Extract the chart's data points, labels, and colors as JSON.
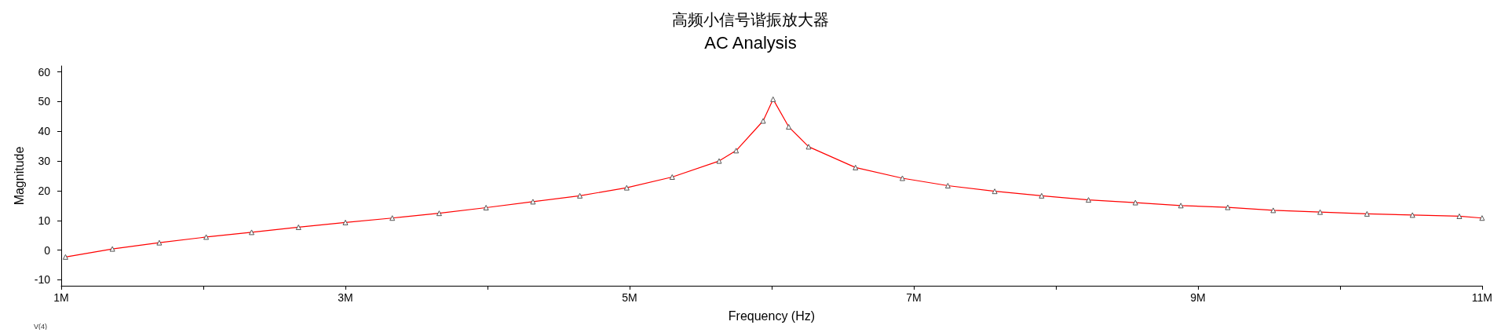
{
  "chart_data": {
    "type": "line",
    "title": "高频小信号谐振放大器",
    "subtitle": "AC Analysis",
    "xlabel": "Frequency (Hz)",
    "ylabel": "Magnitude",
    "annotations": [
      "V(4)"
    ],
    "xlim": [
      1000000,
      11000000
    ],
    "xticks": [
      {
        "value": 1000000,
        "label": "1M"
      },
      {
        "value": 2000000,
        "label": null
      },
      {
        "value": 3000000,
        "label": "3M"
      },
      {
        "value": 4000000,
        "label": null
      },
      {
        "value": 5000000,
        "label": "5M"
      },
      {
        "value": 6000000,
        "label": null
      },
      {
        "value": 7000000,
        "label": "7M"
      },
      {
        "value": 8000000,
        "label": null
      },
      {
        "value": 9000000,
        "label": "9M"
      },
      {
        "value": 10000000,
        "label": null
      },
      {
        "value": 11000000,
        "label": "11M"
      }
    ],
    "ylim": [
      -12,
      62
    ],
    "yticks": [
      -10,
      0,
      10,
      20,
      30,
      40,
      50,
      60
    ],
    "grid": false,
    "marker": "triangle",
    "line_style": "solid",
    "series": [
      {
        "color": "#ff0000",
        "x": [
          1030000,
          1360000,
          1690000,
          2020000,
          2340000,
          2670000,
          3000000,
          3330000,
          3660000,
          3990000,
          4320000,
          4650000,
          4980000,
          5300000,
          5630000,
          5750000,
          5940000,
          6010000,
          6120000,
          6260000,
          6590000,
          6920000,
          7240000,
          7570000,
          7900000,
          8230000,
          8560000,
          8880000,
          9210000,
          9530000,
          9860000,
          10190000,
          10510000,
          10840000,
          11000000
        ],
        "values": [
          -2.3,
          0.4,
          2.5,
          4.4,
          6.0,
          7.7,
          9.3,
          10.8,
          12.4,
          14.3,
          16.3,
          18.3,
          21.0,
          24.6,
          30.0,
          33.5,
          43.5,
          50.8,
          41.5,
          34.8,
          27.8,
          24.2,
          21.7,
          19.8,
          18.3,
          16.9,
          16.0,
          15.0,
          14.4,
          13.4,
          12.8,
          12.2,
          11.8,
          11.4,
          10.8
        ]
      }
    ]
  }
}
